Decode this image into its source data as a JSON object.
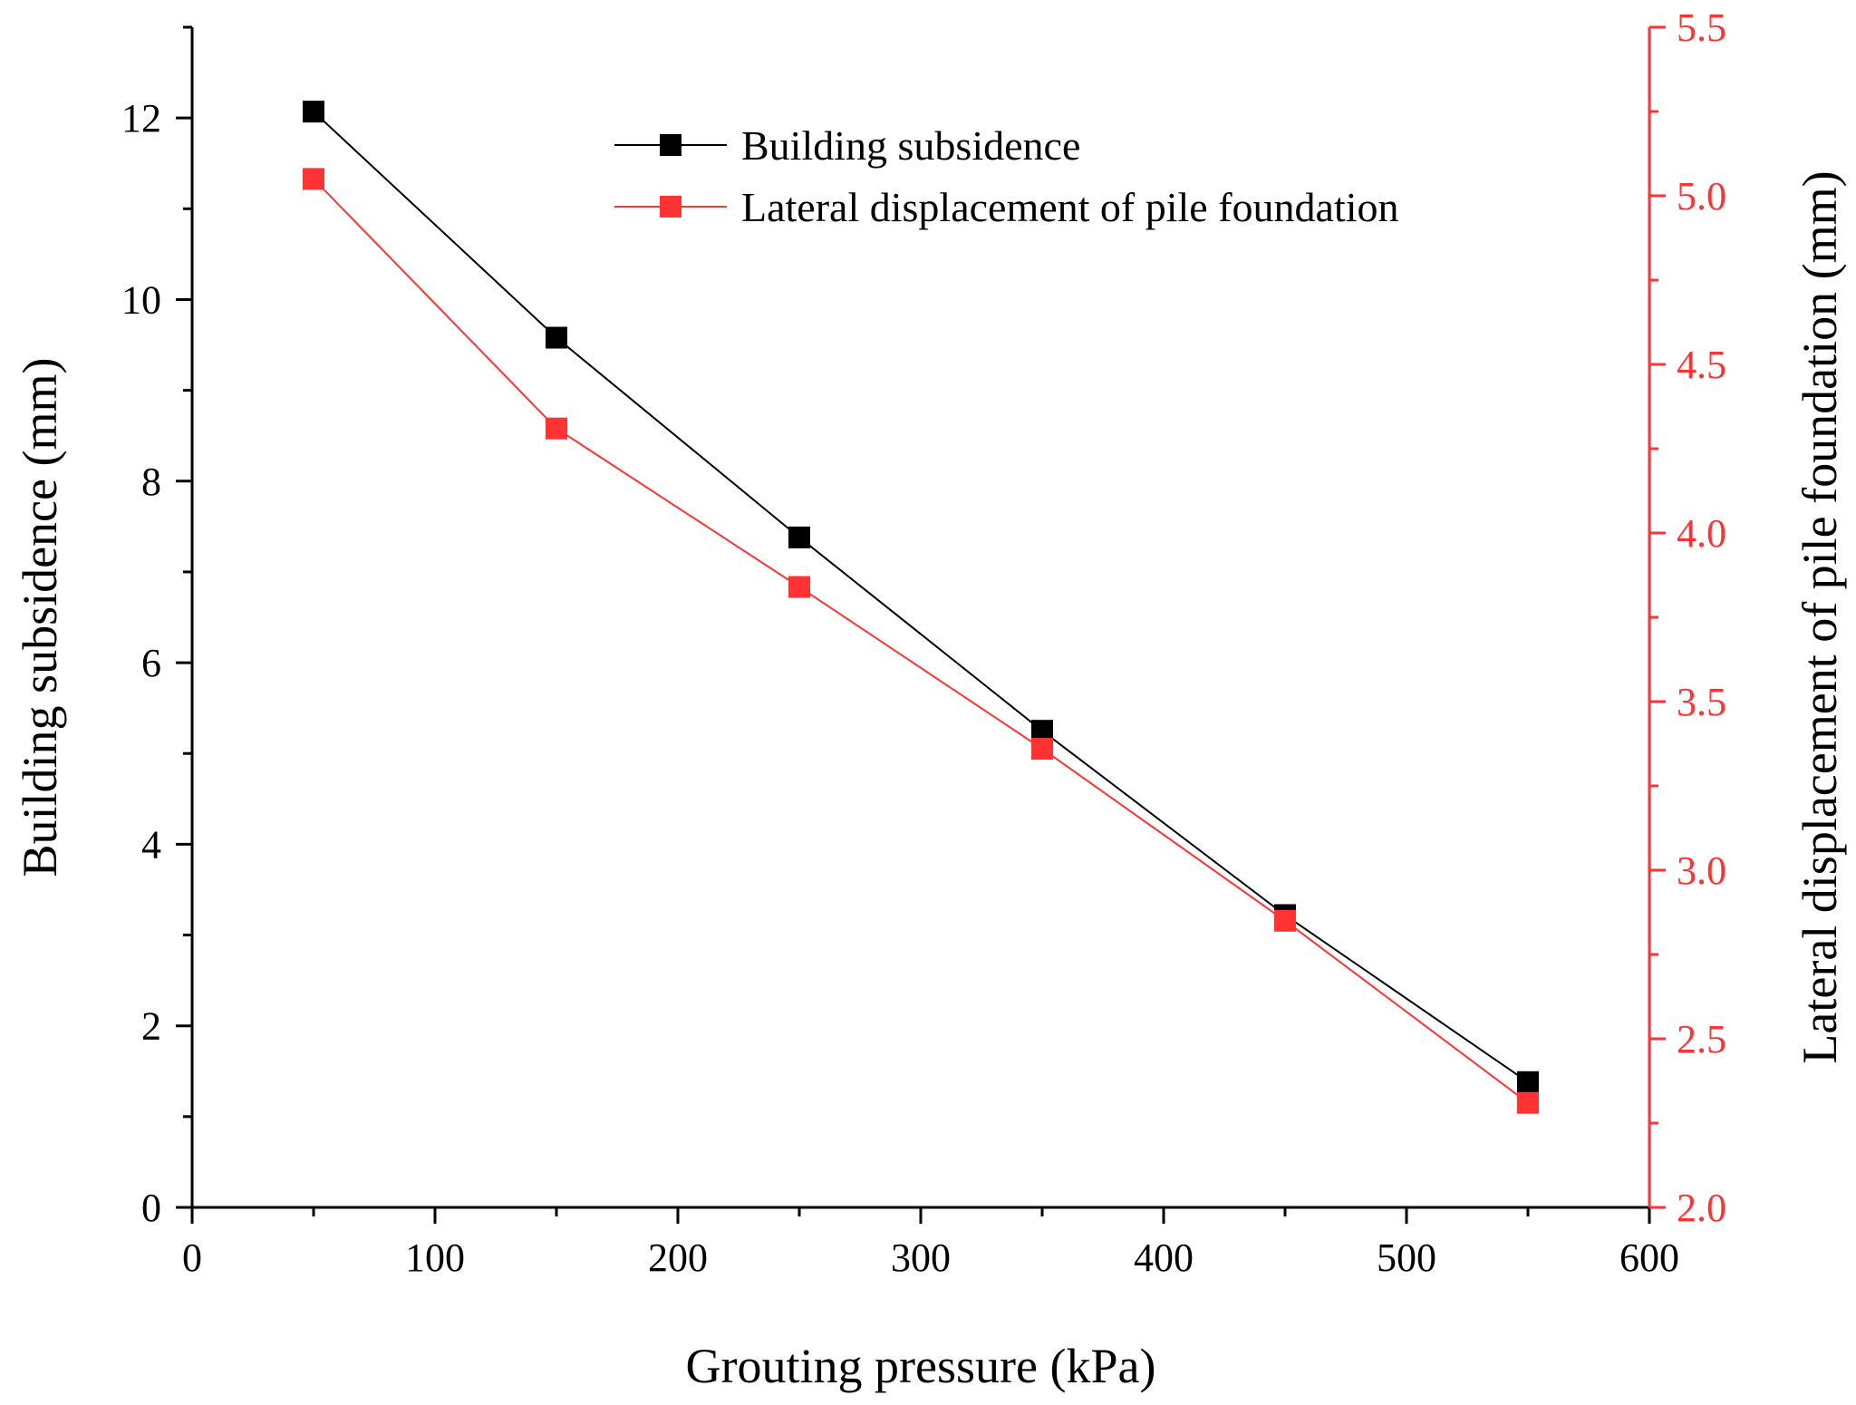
{
  "colors": {
    "left_axis": "#000000",
    "right_axis": "#ff3333",
    "series_black": "#000000",
    "series_red": "#ff3333"
  },
  "chart_data": {
    "type": "line",
    "title": "",
    "xlabel": "Grouting pressure (kPa)",
    "ylabel": "Building subsidence (mm)",
    "y2label": "Lateral displacement of pile foundation (mm)",
    "xlim": [
      0,
      600
    ],
    "ylim": [
      0,
      13
    ],
    "y2lim": [
      2.0,
      5.5
    ],
    "xticks": [
      "0",
      "100",
      "200",
      "300",
      "400",
      "500",
      "600"
    ],
    "yticks": [
      "0",
      "2",
      "4",
      "6",
      "8",
      "10",
      "12"
    ],
    "y2ticks": [
      "2.0",
      "2.5",
      "3.0",
      "3.5",
      "4.0",
      "4.5",
      "5.0",
      "5.5"
    ],
    "x": [
      50,
      150,
      250,
      350,
      450,
      550
    ],
    "series": [
      {
        "name": "Building subsidence",
        "axis": "left",
        "color": "#000000",
        "values": [
          12.07,
          9.58,
          7.38,
          5.25,
          3.22,
          1.38
        ]
      },
      {
        "name": "Lateral displacement of pile foundation",
        "axis": "right",
        "color": "#ff3333",
        "values": [
          5.05,
          4.31,
          3.84,
          3.36,
          2.85,
          2.31
        ]
      }
    ],
    "grid": false,
    "legend_position": "top-center"
  }
}
